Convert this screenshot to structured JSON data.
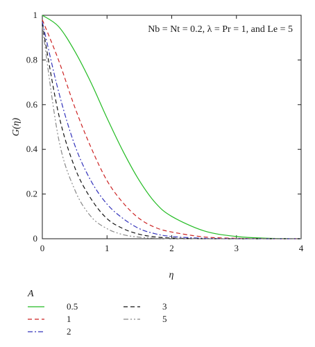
{
  "chart_data": {
    "type": "line",
    "title": "",
    "annotation": "Nb = Nt = 0.2, λ = Pr = 1, and Le = 5",
    "xlabel": "η",
    "ylabel": "G(η)",
    "xlim": [
      0,
      4
    ],
    "ylim": [
      0,
      1
    ],
    "xticks": [
      0,
      1,
      2,
      3,
      4
    ],
    "yticks": [
      0,
      0.2,
      0.4,
      0.6,
      0.8,
      1
    ],
    "xtick_labels": [
      "0",
      "1",
      "2",
      "3",
      "4"
    ],
    "ytick_labels": [
      "0",
      "0.2",
      "0.4",
      "0.6",
      "0.8",
      "1"
    ],
    "grid": false,
    "legend_title": "A",
    "legend_placement": "below",
    "x": [
      0,
      0.25,
      0.5,
      0.75,
      1.0,
      1.25,
      1.5,
      1.75,
      2.0,
      2.5,
      3.0,
      3.5,
      4.0
    ],
    "series": [
      {
        "name": "0.5",
        "color": "#22bb22",
        "dash": "solid",
        "values": [
          1.0,
          0.95,
          0.84,
          0.7,
          0.54,
          0.39,
          0.26,
          0.16,
          0.1,
          0.035,
          0.01,
          0.002,
          0
        ]
      },
      {
        "name": "1",
        "color": "#cc2222",
        "dash": "dashed",
        "values": [
          0.98,
          0.8,
          0.59,
          0.41,
          0.26,
          0.16,
          0.09,
          0.05,
          0.03,
          0.008,
          0.002,
          0,
          0
        ]
      },
      {
        "name": "2",
        "color": "#3333bb",
        "dash": "dashdot",
        "values": [
          0.97,
          0.66,
          0.42,
          0.26,
          0.155,
          0.09,
          0.045,
          0.022,
          0.01,
          0.002,
          0,
          0,
          0
        ]
      },
      {
        "name": "3",
        "color": "#111111",
        "dash": "dashed",
        "values": [
          0.96,
          0.56,
          0.32,
          0.18,
          0.09,
          0.045,
          0.02,
          0.008,
          0.003,
          0,
          0,
          0,
          0
        ]
      },
      {
        "name": "5",
        "color": "#888888",
        "dash": "dashdotdot",
        "values": [
          0.95,
          0.45,
          0.22,
          0.1,
          0.045,
          0.018,
          0.007,
          0.002,
          0,
          0,
          0,
          0,
          0
        ]
      }
    ]
  }
}
